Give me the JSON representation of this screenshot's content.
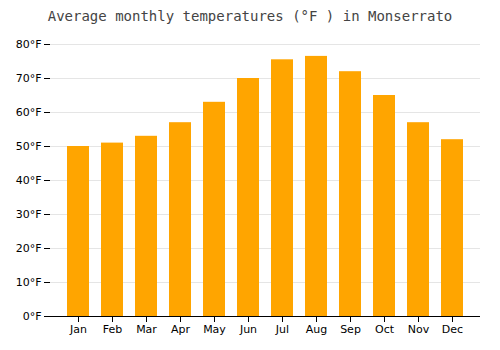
{
  "chart_data": {
    "type": "bar",
    "title": "Average monthly temperatures (°F ) in Monserrato",
    "categories": [
      "Jan",
      "Feb",
      "Mar",
      "Apr",
      "May",
      "Jun",
      "Jul",
      "Aug",
      "Sep",
      "Oct",
      "Nov",
      "Dec"
    ],
    "values": [
      50,
      51,
      53,
      57,
      63,
      70,
      75.5,
      76.5,
      72,
      65,
      57,
      52
    ],
    "color": "#FFA500",
    "ylim": [
      0,
      80
    ],
    "yticks": [
      {
        "value": 0,
        "label": "0°F"
      },
      {
        "value": 10,
        "label": "10°F"
      },
      {
        "value": 20,
        "label": "20°F"
      },
      {
        "value": 30,
        "label": "30°F"
      },
      {
        "value": 40,
        "label": "40°F"
      },
      {
        "value": 50,
        "label": "50°F"
      },
      {
        "value": 60,
        "label": "60°F"
      },
      {
        "value": 70,
        "label": "70°F"
      },
      {
        "value": 80,
        "label": "80°F"
      }
    ],
    "grid": true
  }
}
